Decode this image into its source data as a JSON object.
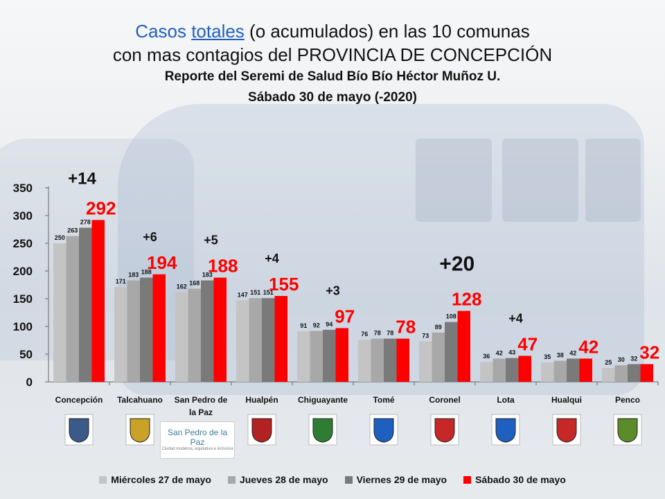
{
  "title": {
    "line1_casos": "Casos",
    "line1_totales": "totales",
    "line1_rest": "(o acumulados) en las 10 comunas",
    "line2": "con mas contagios del  PROVINCIA DE CONCEPCIÓN",
    "line3": "Reporte del Seremi de Salud Bío Bío Héctor Muñoz U.",
    "line4": "Sábado 30 de mayo (-2020)"
  },
  "colors": {
    "series": [
      "#c4c4c4",
      "#a8a8a8",
      "#7a7a7a",
      "#ff0000"
    ],
    "title_blue": "#1f5fbf"
  },
  "legend": [
    "Miércoles 27 de mayo",
    "Jueves 28 de mayo",
    "Viernes 29 de mayo",
    "Sábado 30 de mayo"
  ],
  "logos": [
    {
      "commune": "Concepción",
      "icon": "shield-icon"
    },
    {
      "commune": "Talcahuano",
      "icon": "shield-icon"
    },
    {
      "commune": "San Pedro de la Paz",
      "icon": "logo-icon",
      "text_main": "San Pedro de la Paz",
      "text_sub": "Ciudad moderna, equitativa e inclusiva"
    },
    {
      "commune": "Hualpén",
      "icon": "logo-icon"
    },
    {
      "commune": "Chiguayante",
      "icon": "shield-icon"
    },
    {
      "commune": "Tomé",
      "icon": "shield-icon"
    },
    {
      "commune": "Coronel",
      "icon": "shield-icon"
    },
    {
      "commune": "Lota",
      "icon": "shield-icon"
    },
    {
      "commune": "Hualqui",
      "icon": "shield-icon"
    },
    {
      "commune": "Penco",
      "icon": "shield-icon"
    }
  ],
  "chart_data": {
    "type": "bar",
    "categories": [
      "Concepción",
      "Talcahuano",
      "San Pedro de la Paz",
      "Hualpén",
      "Chiguayante",
      "Tomé",
      "Coronel",
      "Lota",
      "Hualqui",
      "Penco"
    ],
    "series": [
      {
        "name": "Miércoles 27 de mayo",
        "values": [
          250,
          171,
          162,
          147,
          91,
          76,
          73,
          36,
          35,
          25
        ]
      },
      {
        "name": "Jueves 28 de mayo",
        "values": [
          263,
          183,
          168,
          151,
          92,
          78,
          89,
          42,
          38,
          30
        ]
      },
      {
        "name": "Viernes 29 de mayo",
        "values": [
          278,
          188,
          183,
          151,
          94,
          78,
          108,
          43,
          42,
          32
        ]
      },
      {
        "name": "Sábado 30 de mayo",
        "values": [
          292,
          194,
          188,
          155,
          97,
          78,
          128,
          47,
          42,
          32
        ]
      }
    ],
    "increments": [
      "+14",
      "+6",
      "+5",
      "+4",
      "+3",
      "",
      "+20",
      "+4",
      "",
      ""
    ],
    "ylim": [
      0,
      350
    ],
    "yticks": [
      0,
      50,
      100,
      150,
      200,
      250,
      300,
      350
    ],
    "legend_position": "bottom",
    "grid": false
  }
}
